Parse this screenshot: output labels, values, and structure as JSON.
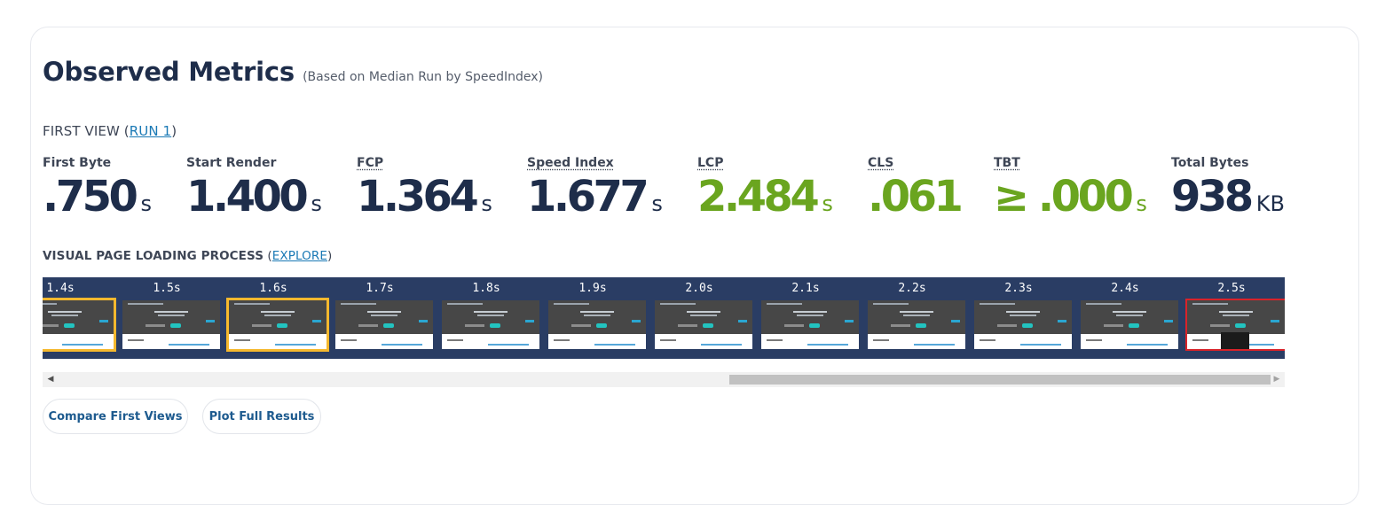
{
  "header": {
    "title": "Observed Metrics",
    "subtitle": "(Based on Median Run by SpeedIndex)"
  },
  "run": {
    "prefix": "FIRST VIEW (",
    "link": "RUN 1",
    "suffix": ")"
  },
  "metrics": [
    {
      "label": "First Byte",
      "value": ".750",
      "unit": "s",
      "status": "neutral"
    },
    {
      "label": "Start Render",
      "value": "1.400",
      "unit": "s",
      "status": "neutral"
    },
    {
      "label": "FCP",
      "value": "1.364",
      "unit": "s",
      "status": "neutral"
    },
    {
      "label": "Speed Index",
      "value": "1.677",
      "unit": "s",
      "status": "neutral"
    },
    {
      "label": "LCP",
      "value": "2.484",
      "unit": "s",
      "status": "good"
    },
    {
      "label": "CLS",
      "value": ".061",
      "unit": "",
      "status": "good"
    },
    {
      "label": "TBT",
      "value": "≥ .000",
      "unit": "s",
      "status": "good"
    },
    {
      "label": "Total Bytes",
      "value": "938",
      "unit": "KB",
      "status": "neutral"
    }
  ],
  "visual": {
    "label": "VISUAL PAGE LOADING PROCESS",
    "open_paren": " (",
    "link": "EXPLORE",
    "close_paren": ")"
  },
  "filmstrip": [
    {
      "time": "1.4s",
      "state": "changed"
    },
    {
      "time": "1.5s",
      "state": "normal"
    },
    {
      "time": "1.6s",
      "state": "changed"
    },
    {
      "time": "1.7s",
      "state": "normal"
    },
    {
      "time": "1.8s",
      "state": "normal"
    },
    {
      "time": "1.9s",
      "state": "normal"
    },
    {
      "time": "2.0s",
      "state": "normal"
    },
    {
      "time": "2.1s",
      "state": "normal"
    },
    {
      "time": "2.2s",
      "state": "normal"
    },
    {
      "time": "2.3s",
      "state": "normal"
    },
    {
      "time": "2.4s",
      "state": "normal"
    },
    {
      "time": "2.5s",
      "state": "final"
    }
  ],
  "scroll_position": 0.56,
  "buttons": {
    "compare": "Compare First Views",
    "plot": "Plot Full Results"
  },
  "colors": {
    "navy": "#1e2d4a",
    "good_green": "#6aa51f",
    "link": "#1a79b5",
    "strip_bg": "#2a3d64",
    "changed_frame": "#f5b82e",
    "final_frame": "#d9232a"
  }
}
